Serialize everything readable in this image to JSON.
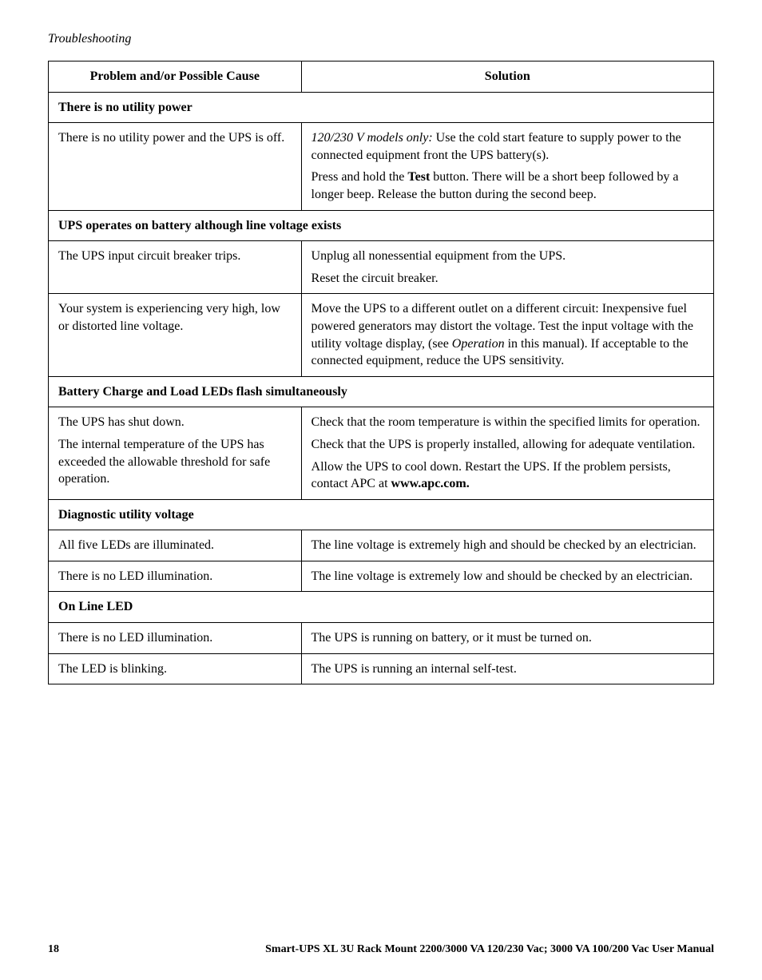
{
  "header": "Troubleshooting",
  "columns": {
    "cause": "Problem and/or Possible Cause",
    "solution": "Solution"
  },
  "sections": [
    {
      "title": "There is no utility power",
      "rows": [
        {
          "cause": "There is no utility power and the UPS is off.",
          "solution_parts": [
            {
              "prefix_italic": "120/230 V models only:",
              "rest": " Use the cold start feature to supply power to the connected equipment front the UPS battery(s)."
            },
            {
              "plain_before": "Press and hold the ",
              "bold": "Test",
              "plain_after": " button. There will be a short beep followed by a longer beep. Release the button during the second beep."
            }
          ]
        }
      ]
    },
    {
      "title": "UPS operates on battery although line voltage exists",
      "rows": [
        {
          "cause": "The UPS input circuit breaker trips.",
          "solution_paras": [
            "Unplug all nonessential equipment from the UPS.",
            "Reset the circuit breaker."
          ]
        },
        {
          "cause": "Your system is experiencing very high, low or distorted line voltage.",
          "solution_with_italic": {
            "before": "Move the UPS to a different outlet on a different circuit: Inexpensive fuel powered generators may distort the voltage. Test the input voltage with the utility voltage display, (see ",
            "italic": "Operation",
            "after": " in this manual). If acceptable to the connected equipment, reduce the UPS sensitivity."
          }
        }
      ]
    },
    {
      "title": "Battery Charge and Load LEDs flash simultaneously",
      "rows": [
        {
          "cause_paras": [
            "The UPS has shut down.",
            "The internal temperature of the UPS has exceeded the allowable threshold for safe operation."
          ],
          "solution_bold_end": {
            "paras": [
              "Check that the room temperature is within the specified limits for operation.",
              "Check that the UPS is properly installed, allowing for adequate ventilation."
            ],
            "last_before": "Allow the UPS to cool down. Restart the UPS. If the problem persists, contact APC at ",
            "last_bold": "www.apc.com."
          }
        }
      ]
    },
    {
      "title": "Diagnostic utility voltage",
      "rows": [
        {
          "cause": "All five LEDs are illuminated.",
          "solution": "The line voltage is extremely high and should be checked by an electrician."
        },
        {
          "cause": "There is no LED illumination.",
          "solution": "The line voltage is extremely low and should be checked by an electrician."
        }
      ]
    },
    {
      "title": "On Line LED",
      "rows": [
        {
          "cause": "There is no LED illumination.",
          "solution": "The UPS is running on battery, or it must be turned on."
        },
        {
          "cause": "The LED is blinking.",
          "solution": "The UPS is running an internal self-test."
        }
      ]
    }
  ],
  "footer": {
    "page": "18",
    "title": "Smart-UPS XL  3U Rack Mount  2200/3000 VA  120/230 Vac;  3000 VA  100/200 Vac  User Manual"
  }
}
